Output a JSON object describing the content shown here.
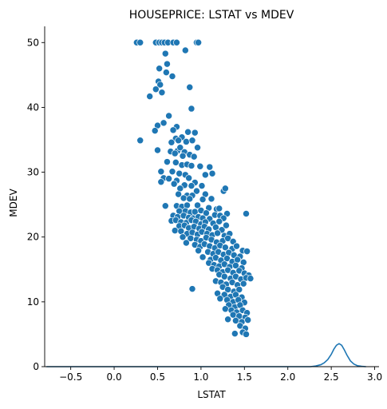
{
  "chart_data": {
    "type": "scatter",
    "title": "HOUSEPRICE: LSTAT vs MDEV",
    "xlabel": "LSTAT",
    "ylabel": "MDEV",
    "xlim": [
      -0.8,
      3.05
    ],
    "ylim": [
      0,
      52.5
    ],
    "xticks": [
      "−0.5",
      "0.0",
      "0.5",
      "1.0",
      "1.5",
      "2.0",
      "2.5",
      "3.0"
    ],
    "xtick_values": [
      -0.5,
      0.0,
      0.5,
      1.0,
      1.5,
      2.0,
      2.5,
      3.0
    ],
    "yticks": [
      "0",
      "10",
      "20",
      "30",
      "40",
      "50"
    ],
    "ytick_values": [
      0,
      10,
      20,
      30,
      40,
      50
    ],
    "grid": false,
    "point_color": "#1f77b4",
    "points": [
      [
        0.26,
        50
      ],
      [
        0.3,
        50
      ],
      [
        0.48,
        50
      ],
      [
        0.52,
        50
      ],
      [
        0.55,
        50
      ],
      [
        0.58,
        50
      ],
      [
        0.62,
        50
      ],
      [
        0.68,
        50
      ],
      [
        0.72,
        50
      ],
      [
        0.95,
        50
      ],
      [
        0.97,
        50
      ],
      [
        0.82,
        48.8
      ],
      [
        0.59,
        48.3
      ],
      [
        0.61,
        46.7
      ],
      [
        0.52,
        46
      ],
      [
        0.6,
        45.4
      ],
      [
        0.67,
        44.8
      ],
      [
        0.51,
        44
      ],
      [
        0.53,
        43.5
      ],
      [
        0.87,
        43.1
      ],
      [
        0.48,
        42.8
      ],
      [
        0.55,
        42.3
      ],
      [
        0.41,
        41.7
      ],
      [
        0.89,
        39.8
      ],
      [
        0.63,
        38.7
      ],
      [
        0.57,
        37.6
      ],
      [
        0.5,
        37.2
      ],
      [
        0.72,
        37
      ],
      [
        0.68,
        36.5
      ],
      [
        0.47,
        36.4
      ],
      [
        0.85,
        36.2
      ],
      [
        0.93,
        36.1
      ],
      [
        0.78,
        35.4
      ],
      [
        0.71,
        35.2
      ],
      [
        0.3,
        34.9
      ],
      [
        0.74,
        34.9
      ],
      [
        0.66,
        34.6
      ],
      [
        0.83,
        34.7
      ],
      [
        0.9,
        34.9
      ],
      [
        0.73,
        33.3
      ],
      [
        0.76,
        33.8
      ],
      [
        0.96,
        33.8
      ],
      [
        0.81,
        33.1
      ],
      [
        0.5,
        33.4
      ],
      [
        0.65,
        33.2
      ],
      [
        0.7,
        32.9
      ],
      [
        0.79,
        32.5
      ],
      [
        0.87,
        32.7
      ],
      [
        0.92,
        32.4
      ],
      [
        0.61,
        31.6
      ],
      [
        0.71,
        31.5
      ],
      [
        0.78,
        31.1
      ],
      [
        0.84,
        31.2
      ],
      [
        0.89,
        31
      ],
      [
        0.99,
        30.9
      ],
      [
        1.1,
        30.8
      ],
      [
        0.54,
        30.1
      ],
      [
        0.67,
        30.1
      ],
      [
        0.75,
        29.8
      ],
      [
        0.82,
        29.6
      ],
      [
        1.05,
        29.6
      ],
      [
        1.13,
        29.8
      ],
      [
        0.57,
        29.1
      ],
      [
        0.63,
        29
      ],
      [
        0.72,
        28.7
      ],
      [
        0.86,
        29.1
      ],
      [
        0.93,
        28.4
      ],
      [
        0.69,
        28.2
      ],
      [
        0.54,
        28.5
      ],
      [
        0.81,
        28
      ],
      [
        0.89,
        27.9
      ],
      [
        1.01,
        27.9
      ],
      [
        0.76,
        27.5
      ],
      [
        0.95,
        27.1
      ],
      [
        1.26,
        27.1
      ],
      [
        1.28,
        27.5
      ],
      [
        0.74,
        26.6
      ],
      [
        0.84,
        26.4
      ],
      [
        0.9,
        26.4
      ],
      [
        1.05,
        26.6
      ],
      [
        0.8,
        26
      ],
      [
        0.87,
        25.9
      ],
      [
        1.02,
        25.8
      ],
      [
        1.12,
        25.9
      ],
      [
        0.72,
        24.8
      ],
      [
        0.78,
        24.7
      ],
      [
        0.84,
        24.9
      ],
      [
        0.96,
        24.9
      ],
      [
        1.09,
        24.5
      ],
      [
        1.18,
        24.3
      ],
      [
        1.21,
        24.4
      ],
      [
        1.3,
        23.6
      ],
      [
        0.59,
        24.8
      ],
      [
        0.75,
        24
      ],
      [
        0.82,
        24
      ],
      [
        0.88,
        23.8
      ],
      [
        0.93,
        23.9
      ],
      [
        1,
        24.1
      ],
      [
        1.06,
        23.7
      ],
      [
        1.16,
        23.4
      ],
      [
        1.22,
        23.3
      ],
      [
        1.52,
        23.6
      ],
      [
        0.68,
        23.3
      ],
      [
        0.73,
        23.1
      ],
      [
        0.8,
        23.3
      ],
      [
        0.86,
        23
      ],
      [
        0.91,
        22.9
      ],
      [
        0.97,
        23.1
      ],
      [
        1.02,
        22.9
      ],
      [
        1.1,
        22.8
      ],
      [
        1.26,
        22.9
      ],
      [
        0.66,
        22.5
      ],
      [
        0.71,
        22.6
      ],
      [
        0.77,
        22.3
      ],
      [
        0.83,
        22.2
      ],
      [
        0.89,
        22.6
      ],
      [
        0.94,
        22.4
      ],
      [
        1,
        22
      ],
      [
        1.05,
        22.3
      ],
      [
        1.14,
        22.1
      ],
      [
        1.21,
        22.4
      ],
      [
        0.75,
        21.7
      ],
      [
        0.81,
        21.8
      ],
      [
        0.86,
        21.4
      ],
      [
        0.92,
        21.6
      ],
      [
        0.98,
        21.3
      ],
      [
        1.04,
        21.6
      ],
      [
        1.09,
        21.2
      ],
      [
        1.17,
        21.5
      ],
      [
        1.24,
        21.1
      ],
      [
        1.29,
        21.8
      ],
      [
        0.7,
        21
      ],
      [
        0.77,
        20.9
      ],
      [
        0.84,
        20.5
      ],
      [
        0.9,
        20.7
      ],
      [
        0.96,
        20.4
      ],
      [
        1.01,
        20.8
      ],
      [
        1.07,
        20.5
      ],
      [
        1.13,
        20.3
      ],
      [
        1.19,
        20.6
      ],
      [
        1.27,
        20.2
      ],
      [
        1.33,
        20.5
      ],
      [
        0.79,
        20
      ],
      [
        0.88,
        19.8
      ],
      [
        0.95,
        19.6
      ],
      [
        1,
        19.4
      ],
      [
        1.06,
        19.9
      ],
      [
        1.12,
        19.6
      ],
      [
        1.18,
        19.2
      ],
      [
        1.25,
        19.4
      ],
      [
        1.31,
        19.8
      ],
      [
        1.37,
        19.3
      ],
      [
        0.83,
        19.1
      ],
      [
        0.93,
        18.8
      ],
      [
        0.99,
        18.5
      ],
      [
        1.04,
        18.9
      ],
      [
        1.1,
        18.6
      ],
      [
        1.16,
        18.3
      ],
      [
        1.22,
        18.7
      ],
      [
        1.28,
        18.4
      ],
      [
        1.36,
        18.2
      ],
      [
        1.41,
        18.6
      ],
      [
        1.48,
        17.9
      ],
      [
        1.53,
        17.8
      ],
      [
        0.97,
        17.9
      ],
      [
        1.08,
        17.7
      ],
      [
        1.14,
        17.4
      ],
      [
        1.2,
        17.7
      ],
      [
        1.26,
        17.3
      ],
      [
        1.32,
        17.6
      ],
      [
        1.38,
        17.2
      ],
      [
        1.45,
        17
      ],
      [
        1.02,
        16.9
      ],
      [
        1.11,
        16.5
      ],
      [
        1.17,
        16.8
      ],
      [
        1.23,
        16.4
      ],
      [
        1.3,
        16.7
      ],
      [
        1.36,
        16.2
      ],
      [
        1.42,
        16.5
      ],
      [
        1.49,
        16.1
      ],
      [
        1.09,
        16
      ],
      [
        1.15,
        15.7
      ],
      [
        1.21,
        15.5
      ],
      [
        1.27,
        15.8
      ],
      [
        1.33,
        15.4
      ],
      [
        1.4,
        15.6
      ],
      [
        1.47,
        15.2
      ],
      [
        1.13,
        15.1
      ],
      [
        1.19,
        14.9
      ],
      [
        1.25,
        14.6
      ],
      [
        1.31,
        14.9
      ],
      [
        1.37,
        14.5
      ],
      [
        1.44,
        14.8
      ],
      [
        1.5,
        14.4
      ],
      [
        1.55,
        14.1
      ],
      [
        1.21,
        14.2
      ],
      [
        1.27,
        13.9
      ],
      [
        1.34,
        13.6
      ],
      [
        1.4,
        13.9
      ],
      [
        1.46,
        13.5
      ],
      [
        1.52,
        13.7
      ],
      [
        1.57,
        13.6
      ],
      [
        1.17,
        13.2
      ],
      [
        1.23,
        13
      ],
      [
        1.29,
        12.7
      ],
      [
        1.36,
        13
      ],
      [
        1.42,
        12.6
      ],
      [
        1.49,
        12.8
      ],
      [
        0.9,
        12
      ],
      [
        1.25,
        12.3
      ],
      [
        1.31,
        11.9
      ],
      [
        1.38,
        11.6
      ],
      [
        1.44,
        11.9
      ],
      [
        1.19,
        11.3
      ],
      [
        1.27,
        11.1
      ],
      [
        1.34,
        10.8
      ],
      [
        1.4,
        11.1
      ],
      [
        1.47,
        10.7
      ],
      [
        1.22,
        10.5
      ],
      [
        1.3,
        10.3
      ],
      [
        1.37,
        10
      ],
      [
        1.43,
        10.3
      ],
      [
        1.5,
        9.9
      ],
      [
        1.32,
        9.5
      ],
      [
        1.39,
        9.2
      ],
      [
        1.45,
        9.5
      ],
      [
        1.28,
        8.9
      ],
      [
        1.35,
        8.7
      ],
      [
        1.41,
        8.4
      ],
      [
        1.48,
        8.7
      ],
      [
        1.53,
        8.3
      ],
      [
        1.37,
        8
      ],
      [
        1.44,
        7.8
      ],
      [
        1.51,
        7.6
      ],
      [
        1.31,
        7.3
      ],
      [
        1.4,
        7.1
      ],
      [
        1.47,
        6.9
      ],
      [
        1.54,
        7.2
      ],
      [
        1.45,
        6.3
      ],
      [
        1.51,
        5.9
      ],
      [
        1.39,
        5.1
      ],
      [
        1.48,
        5.3
      ],
      [
        1.52,
        5
      ]
    ],
    "kde": {
      "color": "#1f77b4",
      "x": [
        -0.78,
        2.26,
        2.32,
        2.38,
        2.42,
        2.46,
        2.5,
        2.53,
        2.56,
        2.59,
        2.62,
        2.65,
        2.68,
        2.72,
        2.76,
        2.8,
        2.85,
        2.9
      ],
      "y": [
        0,
        0,
        0.1,
        0.3,
        0.6,
        1.1,
        1.9,
        2.7,
        3.3,
        3.55,
        3.3,
        2.6,
        1.8,
        0.9,
        0.4,
        0.15,
        0.05,
        0
      ]
    }
  }
}
